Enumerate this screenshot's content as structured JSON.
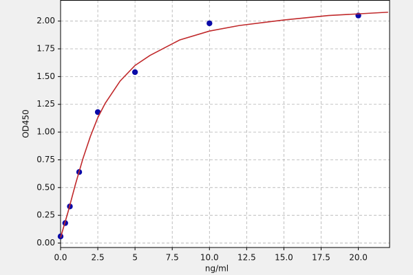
{
  "chart_data": {
    "type": "scatter",
    "xlabel": "ng/ml",
    "ylabel": "OD450",
    "xlim": [
      0,
      22.1
    ],
    "ylim": [
      -0.04,
      2.19
    ],
    "xticks": [
      {
        "value": 0,
        "label": "0.0"
      },
      2.5,
      5,
      7.5,
      {
        "value": 10,
        "label": "10.0"
      },
      12.5,
      {
        "value": 15,
        "label": "15.0"
      },
      17.5,
      {
        "value": 20,
        "label": "20.0"
      }
    ],
    "yticks": [
      {
        "value": 0,
        "label": "0.00"
      },
      0.25,
      {
        "value": 0.5,
        "label": "0.50"
      },
      0.75,
      {
        "value": 1,
        "label": "1.00"
      },
      1.25,
      {
        "value": 1.5,
        "label": "1.50"
      },
      1.75,
      {
        "value": 2,
        "label": "2.00"
      }
    ],
    "grid": true,
    "series": [
      {
        "mode": "markers",
        "color": "#0a0aa8",
        "x": [
          0,
          0.3125,
          0.625,
          1.25,
          2.5,
          5,
          10,
          20
        ],
        "values": [
          0.06,
          0.18,
          0.33,
          0.64,
          1.18,
          1.54,
          1.98,
          2.05
        ]
      },
      {
        "mode": "line",
        "color": "#c0282a",
        "x": [
          0,
          0.5,
          1,
          1.5,
          2,
          2.5,
          3,
          4,
          5,
          6,
          8,
          10,
          12,
          15,
          18,
          22
        ],
        "values": [
          0.05,
          0.28,
          0.53,
          0.76,
          0.96,
          1.13,
          1.26,
          1.46,
          1.6,
          1.69,
          1.83,
          1.91,
          1.96,
          2.01,
          2.05,
          2.08
        ]
      }
    ]
  }
}
